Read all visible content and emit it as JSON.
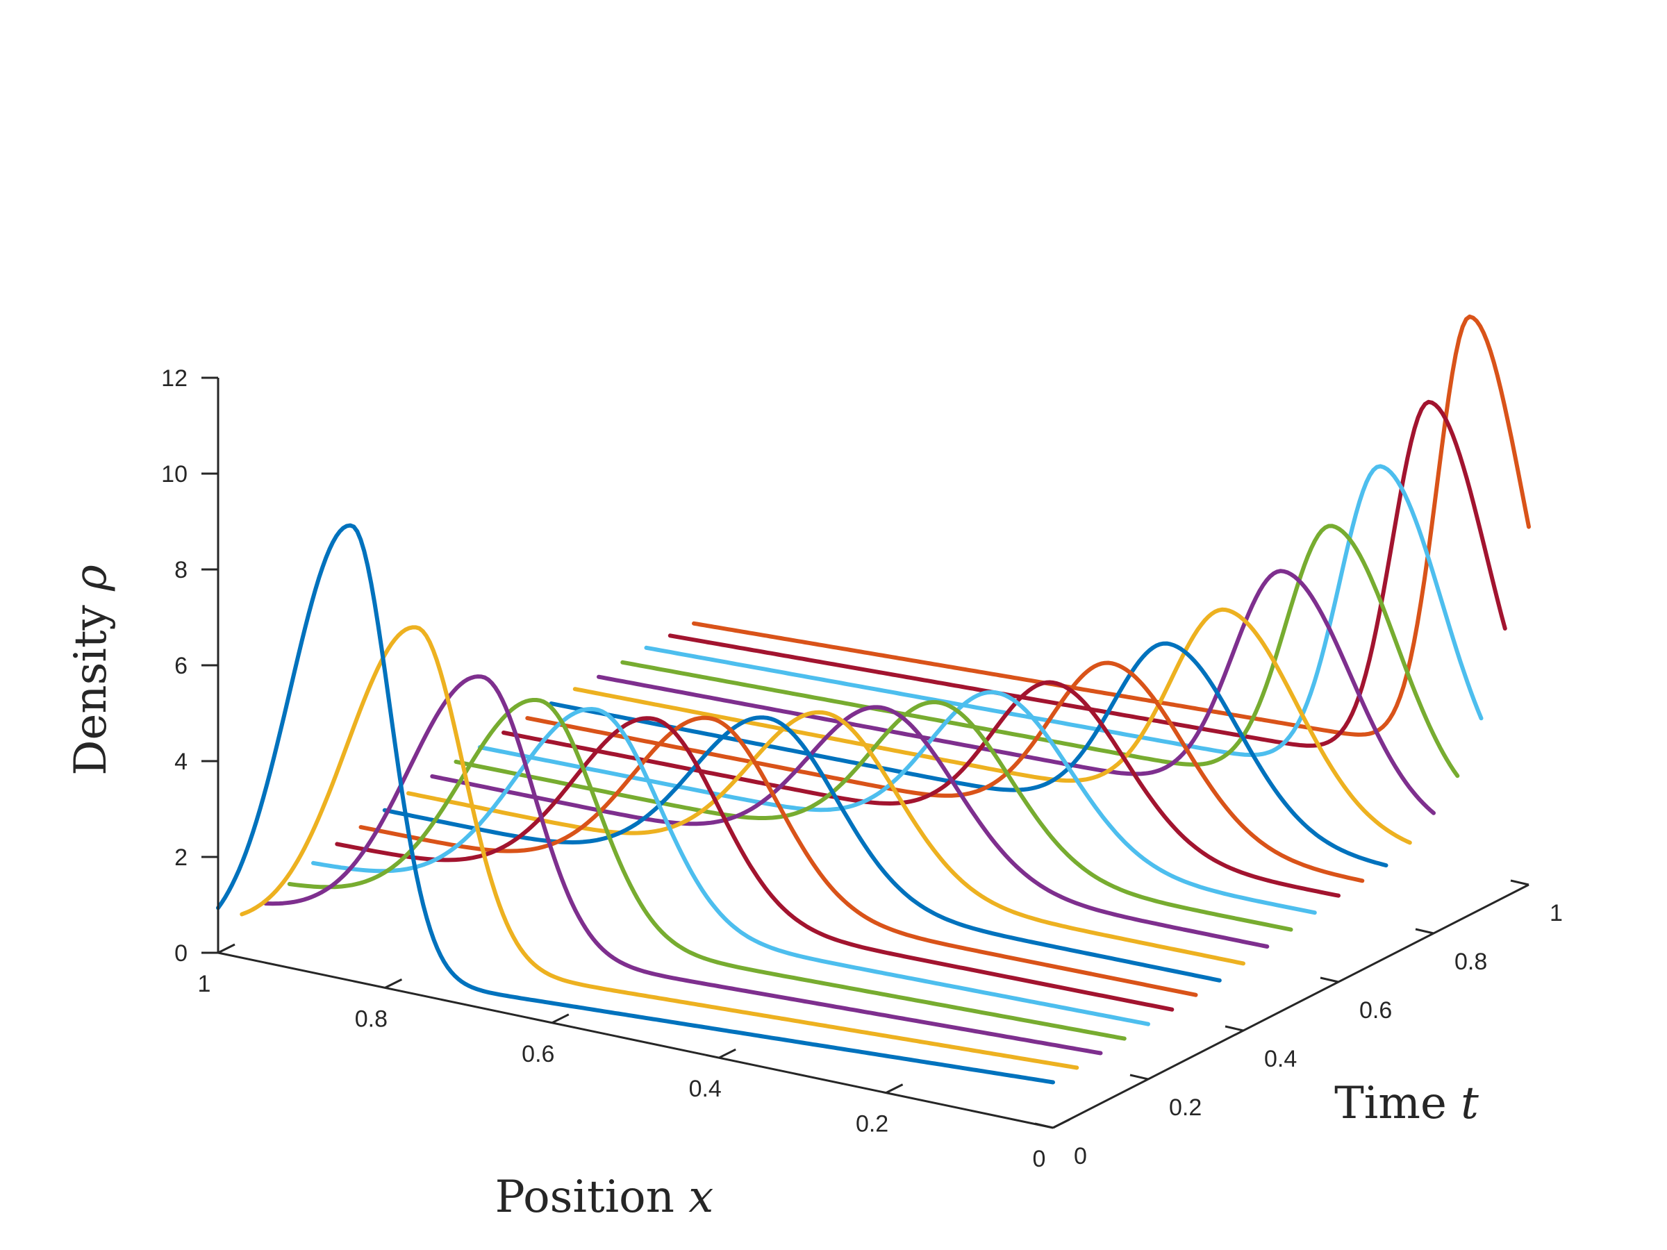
{
  "chart_data": {
    "type": "line",
    "title": "",
    "xlabel": {
      "text": "Position ",
      "var": "x"
    },
    "ylabel": {
      "text": "Time ",
      "var": "t"
    },
    "zlabel": {
      "text": "Density ",
      "var": "ρ"
    },
    "xlim": [
      0,
      1
    ],
    "ylim": [
      0,
      1
    ],
    "zlim": [
      0,
      12
    ],
    "x_ticks": [
      "0",
      "0.2",
      "0.4",
      "0.6",
      "0.8",
      "1"
    ],
    "t_ticks": [
      "0",
      "0.2",
      "0.4",
      "0.6",
      "0.8",
      "1"
    ],
    "z_ticks": [
      "0",
      "2",
      "4",
      "6",
      "8",
      "10",
      "12"
    ],
    "grid": false,
    "legend": "none",
    "colors": [
      "#0072BD",
      "#EDB120",
      "#7E2F8E",
      "#77AC30",
      "#4DBEEE",
      "#A2142F",
      "#D95319"
    ],
    "series": [
      {
        "t": 0.0,
        "peak_x": 0.84,
        "peak_rho": 9.5,
        "width": 0.065,
        "base_high": 0.05,
        "base_low": 0.95,
        "skew": 0.0
      },
      {
        "t": 0.05,
        "peak_x": 0.79,
        "peak_rho": 7.3,
        "width": 0.075,
        "base_high": 0.25,
        "base_low": 1.0,
        "skew": 0.04
      },
      {
        "t": 0.1,
        "peak_x": 0.74,
        "peak_rho": 6.2,
        "width": 0.08,
        "base_high": 0.45,
        "base_low": 1.05,
        "skew": 0.08
      },
      {
        "t": 0.15,
        "peak_x": 0.7,
        "peak_rho": 5.6,
        "width": 0.085,
        "base_high": 0.65,
        "base_low": 1.1,
        "skew": 0.12
      },
      {
        "t": 0.2,
        "peak_x": 0.66,
        "peak_rho": 5.3,
        "width": 0.09,
        "base_high": 0.85,
        "base_low": 1.15,
        "skew": 0.16
      },
      {
        "t": 0.25,
        "peak_x": 0.62,
        "peak_rho": 5.0,
        "width": 0.09,
        "base_high": 1.0,
        "base_low": 1.2,
        "skew": 0.2
      },
      {
        "t": 0.3,
        "peak_x": 0.58,
        "peak_rho": 4.9,
        "width": 0.09,
        "base_high": 1.1,
        "base_low": 1.25,
        "skew": 0.24
      },
      {
        "t": 0.35,
        "peak_x": 0.54,
        "peak_rho": 4.8,
        "width": 0.09,
        "base_high": 1.2,
        "base_low": 1.3,
        "skew": 0.28
      },
      {
        "t": 0.4,
        "peak_x": 0.5,
        "peak_rho": 4.8,
        "width": 0.09,
        "base_high": 1.3,
        "base_low": 1.4,
        "skew": 0.32
      },
      {
        "t": 0.45,
        "peak_x": 0.46,
        "peak_rho": 4.8,
        "width": 0.09,
        "base_high": 1.4,
        "base_low": 1.5,
        "skew": 0.36
      },
      {
        "t": 0.5,
        "peak_x": 0.42,
        "peak_rho": 4.8,
        "width": 0.085,
        "base_high": 1.45,
        "base_low": 1.6,
        "skew": 0.4
      },
      {
        "t": 0.55,
        "peak_x": 0.38,
        "peak_rho": 4.9,
        "width": 0.085,
        "base_high": 1.5,
        "base_low": 1.7,
        "skew": 0.44
      },
      {
        "t": 0.6,
        "peak_x": 0.34,
        "peak_rho": 5.0,
        "width": 0.08,
        "base_high": 1.55,
        "base_low": 1.8,
        "skew": 0.48
      },
      {
        "t": 0.65,
        "peak_x": 0.3,
        "peak_rho": 5.3,
        "width": 0.08,
        "base_high": 1.6,
        "base_low": 1.85,
        "skew": 0.52
      },
      {
        "t": 0.7,
        "peak_x": 0.26,
        "peak_rho": 5.6,
        "width": 0.075,
        "base_high": 1.65,
        "base_low": 1.9,
        "skew": 0.56
      },
      {
        "t": 0.75,
        "peak_x": 0.22,
        "peak_rho": 6.2,
        "width": 0.075,
        "base_high": 1.7,
        "base_low": 2.0,
        "skew": 0.6
      },
      {
        "t": 0.8,
        "peak_x": 0.18,
        "peak_rho": 6.9,
        "width": 0.07,
        "base_high": 1.7,
        "base_low": 2.1,
        "skew": 0.64
      },
      {
        "t": 0.85,
        "peak_x": 0.15,
        "peak_rho": 7.7,
        "width": 0.065,
        "base_high": 1.75,
        "base_low": 2.2,
        "skew": 0.68
      },
      {
        "t": 0.9,
        "peak_x": 0.12,
        "peak_rho": 8.8,
        "width": 0.06,
        "base_high": 1.8,
        "base_low": 2.3,
        "skew": 0.72
      },
      {
        "t": 0.95,
        "peak_x": 0.09,
        "peak_rho": 10.0,
        "width": 0.055,
        "base_high": 1.8,
        "base_low": 2.4,
        "skew": 0.76
      },
      {
        "t": 1.0,
        "peak_x": 0.07,
        "peak_rho": 11.6,
        "width": 0.05,
        "base_high": 1.8,
        "base_low": 2.5,
        "skew": 0.8
      }
    ]
  }
}
